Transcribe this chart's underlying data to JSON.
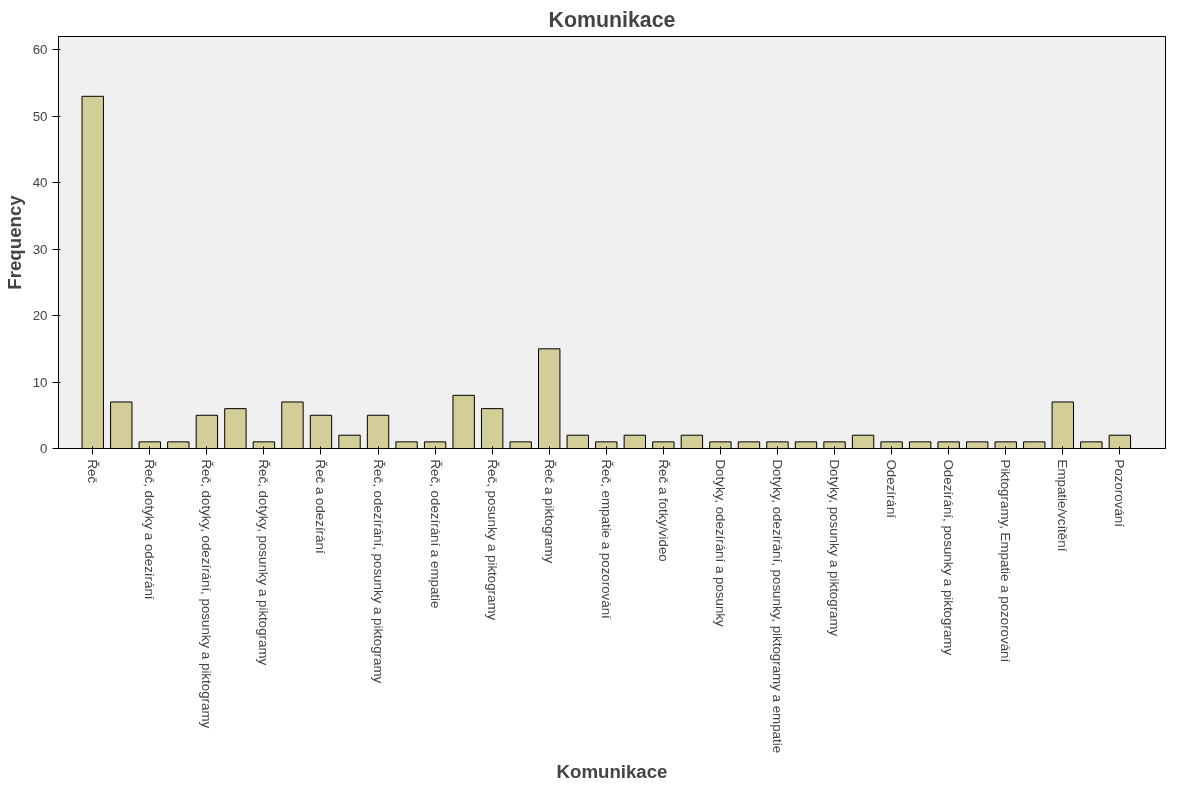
{
  "chart_data": {
    "type": "bar",
    "title": "Komunikace",
    "xlabel": "Komunikace",
    "ylabel": "Frequency",
    "categories": [
      "Řeč",
      null,
      "Řeč, dotyky a odezírání",
      null,
      "Řeč, dotyky, odezírání, posunky a piktogramy",
      null,
      "Řeč, dotyky, posunky a piktogramy",
      null,
      "Řeč a odezírání",
      null,
      "Řeč, odezírání, posunky a piktogramy",
      null,
      "Řeč, odezírání a empatie",
      null,
      "Řeč, posunky a piktogramy",
      null,
      "Řeč a piktogramy",
      null,
      "Řeč, empatie a pozorování",
      null,
      "Řeč a fotky/video",
      null,
      "Dotyky, odezírání a posunky",
      null,
      "Dotyky, odezírání, posunky, piktogramy a empatie",
      null,
      "Dotyky, posunky a piktogramy",
      null,
      "Odezírání",
      null,
      "Odezírání, posunky a piktogramy",
      null,
      "Piktogramy, Empatie a pozorování",
      null,
      "Empatie/vcítění",
      null,
      "Pozorování"
    ],
    "values": [
      53,
      7,
      1,
      1,
      5,
      6,
      1,
      7,
      5,
      2,
      5,
      1,
      1,
      8,
      6,
      1,
      15,
      2,
      1,
      2,
      1,
      2,
      1,
      1,
      1,
      1,
      1,
      2,
      1,
      1,
      1,
      1,
      1,
      1,
      7,
      1,
      2
    ],
    "color": "#d3ce97",
    "ylim": [
      0,
      62
    ],
    "yticks": [
      0,
      10,
      20,
      30,
      40,
      50,
      60
    ],
    "grid": false
  }
}
